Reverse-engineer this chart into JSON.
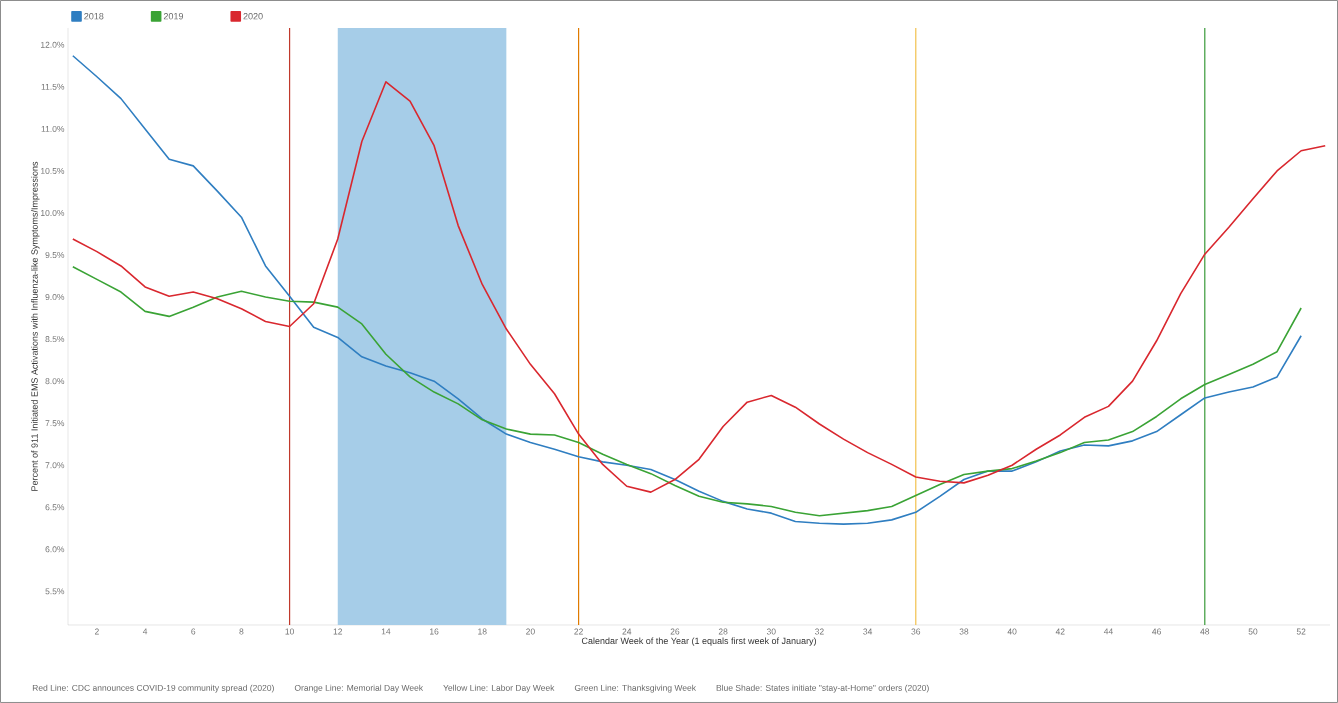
{
  "chart_data": {
    "type": "line",
    "xlabel": "Calendar Week of the Year (1 equals first week of January)",
    "ylabel": "Percent of 911 Initiated EMS Activations with Influenza-like Symptoms/Impressions",
    "xlim": [
      0.8,
      53.2
    ],
    "ylim": [
      5.1,
      12.2
    ],
    "xticks": [
      2,
      4,
      6,
      8,
      10,
      12,
      14,
      16,
      18,
      20,
      22,
      24,
      26,
      28,
      30,
      32,
      34,
      36,
      38,
      40,
      42,
      44,
      46,
      48,
      50,
      52
    ],
    "yticks": [
      {
        "value": 5.5,
        "label": "5.5%"
      },
      {
        "value": 6.0,
        "label": "6.0%"
      },
      {
        "value": 6.5,
        "label": "6.5%"
      },
      {
        "value": 7.0,
        "label": "7.0%"
      },
      {
        "value": 7.5,
        "label": "7.5%"
      },
      {
        "value": 8.0,
        "label": "8.0%"
      },
      {
        "value": 8.5,
        "label": "8.5%"
      },
      {
        "value": 9.0,
        "label": "9.0%"
      },
      {
        "value": 9.5,
        "label": "9.5%"
      },
      {
        "value": 10.0,
        "label": "10.0%"
      },
      {
        "value": 10.5,
        "label": "10.5%"
      },
      {
        "value": 11.0,
        "label": "11.0%"
      },
      {
        "value": 11.5,
        "label": "11.5%"
      },
      {
        "value": 12.0,
        "label": "12.0%"
      }
    ],
    "x": [
      1,
      2,
      3,
      4,
      5,
      6,
      7,
      8,
      9,
      10,
      11,
      12,
      13,
      14,
      15,
      16,
      17,
      18,
      19,
      20,
      21,
      22,
      23,
      24,
      25,
      26,
      27,
      28,
      29,
      30,
      31,
      32,
      33,
      34,
      35,
      36,
      37,
      38,
      39,
      40,
      41,
      42,
      43,
      44,
      45,
      46,
      47,
      48,
      49,
      50,
      51,
      52
    ],
    "series": [
      {
        "name": "2018",
        "color": "#2f7ec1",
        "values": [
          11.87,
          11.62,
          11.36,
          11.0,
          10.64,
          10.56,
          10.26,
          9.95,
          9.37,
          9.01,
          8.64,
          8.52,
          8.29,
          8.18,
          8.1,
          8.0,
          7.79,
          7.55,
          7.37,
          7.27,
          7.19,
          7.1,
          7.04,
          7.0,
          6.95,
          6.83,
          6.69,
          6.57,
          6.48,
          6.43,
          6.33,
          6.31,
          6.3,
          6.31,
          6.35,
          6.44,
          6.63,
          6.83,
          6.93,
          6.93,
          7.04,
          7.17,
          7.24,
          7.23,
          7.29,
          7.4,
          7.6,
          7.8,
          7.87,
          7.93,
          8.05,
          8.54
        ]
      },
      {
        "name": "2019",
        "color": "#3aa335",
        "values": [
          9.36,
          9.21,
          9.06,
          8.83,
          8.77,
          8.88,
          9.0,
          9.07,
          9.0,
          8.95,
          8.94,
          8.88,
          8.68,
          8.32,
          8.05,
          7.87,
          7.73,
          7.54,
          7.43,
          7.37,
          7.36,
          7.27,
          7.13,
          7.01,
          6.9,
          6.76,
          6.63,
          6.56,
          6.54,
          6.51,
          6.44,
          6.4,
          6.43,
          6.46,
          6.51,
          6.64,
          6.77,
          6.89,
          6.93,
          6.96,
          7.05,
          7.15,
          7.27,
          7.3,
          7.4,
          7.58,
          7.79,
          7.96,
          8.08,
          8.2,
          8.35,
          8.87
        ]
      },
      {
        "name": "2020",
        "color": "#d9272e",
        "x": [
          1,
          2,
          3,
          4,
          5,
          6,
          7,
          8,
          9,
          10,
          11,
          12,
          13,
          14,
          15,
          16,
          17,
          18,
          19,
          20,
          21,
          22,
          23,
          24,
          25,
          26,
          27,
          28,
          29,
          30,
          31,
          32,
          33,
          34,
          35,
          36,
          37,
          38,
          39,
          40,
          41,
          42,
          43,
          44,
          45,
          46,
          47,
          48,
          49,
          50,
          51,
          52,
          53
        ],
        "values": [
          9.69,
          9.54,
          9.37,
          9.12,
          9.01,
          9.06,
          8.98,
          8.86,
          8.71,
          8.65,
          8.92,
          9.69,
          10.85,
          11.56,
          11.33,
          10.8,
          9.85,
          9.15,
          8.62,
          8.2,
          7.85,
          7.37,
          7.01,
          6.75,
          6.68,
          6.83,
          7.07,
          7.46,
          7.75,
          7.83,
          7.69,
          7.49,
          7.31,
          7.15,
          7.01,
          6.86,
          6.81,
          6.79,
          6.88,
          7.0,
          7.19,
          7.36,
          7.57,
          7.7,
          8.0,
          8.48,
          9.04,
          9.51,
          9.83,
          10.17,
          10.5,
          10.74,
          10.8
        ]
      }
    ],
    "bands": [
      {
        "axis": "x",
        "from": 12,
        "to": 19,
        "color": "#a6cde8"
      }
    ],
    "ref_lines": [
      {
        "axis": "x",
        "value": 10,
        "color": "#c0392b"
      },
      {
        "axis": "x",
        "value": 22,
        "color": "#e07b00"
      },
      {
        "axis": "x",
        "value": 36,
        "color": "#f2c14e"
      },
      {
        "axis": "x",
        "value": 48,
        "color": "#3a9a3a"
      }
    ],
    "annotations": [
      "Red Line: CDC announces COVID-19 community spread (2020)",
      "Orange Line: Memorial Day Week",
      "Yellow Line: Labor Day Week",
      "Green Line: Thanksgiving Week",
      "Blue Shade: States initiate \"stay-at-Home\" orders (2020)"
    ],
    "legend": "top left",
    "grid": false,
    "marker": "none",
    "line_style": "solid"
  }
}
